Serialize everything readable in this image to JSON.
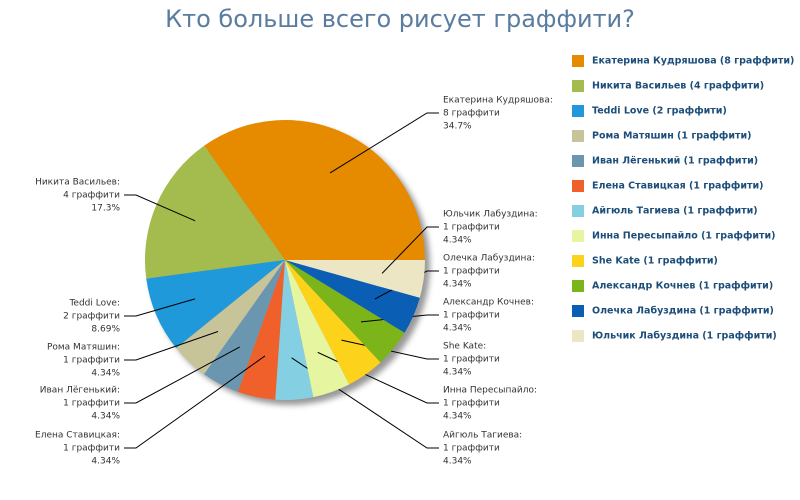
{
  "chart_data": {
    "type": "pie",
    "title": "Кто больше всего рисует граффити?",
    "categories": [
      "Екатерина Кудряшова:",
      "Никита Васильев:",
      "Teddi Love:",
      "Рома Матяшин:",
      "Иван Лёгенький:",
      "Елена Ставицкая:",
      "Айгюль Тагиева:",
      "Инна Пересыпайло:",
      "She Kate:",
      "Александр Кочнев:",
      "Олечка Лабуздина:",
      "Юльчик Лабуздина:"
    ],
    "count_labels": [
      "8 граффити",
      "4 граффити",
      "2 граффити",
      "1 граффити",
      "1 граффити",
      "1 граффити",
      "1 граффити",
      "1 граффити",
      "1 граффити",
      "1 граффити",
      "1 граффити",
      "1 граффити"
    ],
    "values": [
      34.7,
      17.3,
      8.69,
      4.34,
      4.34,
      4.34,
      4.34,
      4.34,
      4.34,
      4.34,
      4.34,
      4.34
    ],
    "value_labels": [
      "34.7%",
      "17.3%",
      "8.69%",
      "4.34%",
      "4.34%",
      "4.34%",
      "4.34%",
      "4.34%",
      "4.34%",
      "4.34%",
      "4.34%",
      "4.34%"
    ],
    "legend": [
      "Екатерина Кудряшова (8 граффити)",
      "Никита Васильев (4 граффити)",
      "Teddi Love (2 граффити)",
      "Рома Матяшин (1 граффити)",
      "Иван Лёгенький (1 граффити)",
      "Елена Ставицкая (1 граффити)",
      "Айгюль Тагиева (1 граффити)",
      "Инна Пересыпайло (1 граффити)",
      "She Kate (1 граффити)",
      "Александр Кочнев (1 граффити)",
      "Олечка Лабуздина (1 граффити)",
      "Юльчик Лабуздина (1 граффити)"
    ],
    "colors": [
      "#e68a00",
      "#a4bc4e",
      "#1f99d9",
      "#c8c49a",
      "#6a96b0",
      "#f0602a",
      "#84d0e2",
      "#e6f5a0",
      "#fdd21a",
      "#7bb51a",
      "#0a5fb4",
      "#ede6c4"
    ]
  }
}
